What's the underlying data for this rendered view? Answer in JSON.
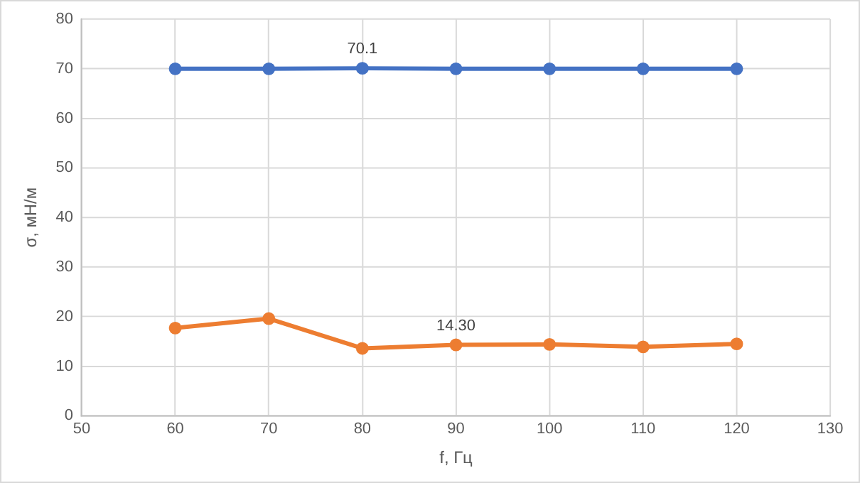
{
  "chart_data": {
    "type": "line",
    "xlabel": "f, Гц",
    "ylabel": "σ, мН/м",
    "x": [
      60,
      70,
      80,
      90,
      100,
      110,
      120
    ],
    "series": [
      {
        "color": "#4472c4",
        "values": [
          70,
          70,
          70.1,
          70,
          70,
          70,
          70
        ]
      },
      {
        "color": "#ed7d31",
        "values": [
          17.7,
          19.6,
          13.6,
          14.3,
          14.4,
          13.9,
          14.5
        ]
      }
    ],
    "xlim": [
      50,
      130
    ],
    "xticks": [
      50,
      60,
      70,
      80,
      90,
      100,
      110,
      120,
      130
    ],
    "ylim": [
      0,
      80
    ],
    "yticks": [
      0,
      10,
      20,
      30,
      40,
      50,
      60,
      70,
      80
    ],
    "grid": true,
    "legend": false,
    "marker": "circle",
    "line_style": "solid",
    "annotations": [
      {
        "text": "70.1",
        "x": 80,
        "y": 70.1
      },
      {
        "text": "14.30",
        "x": 90,
        "y": 14.3
      }
    ]
  }
}
